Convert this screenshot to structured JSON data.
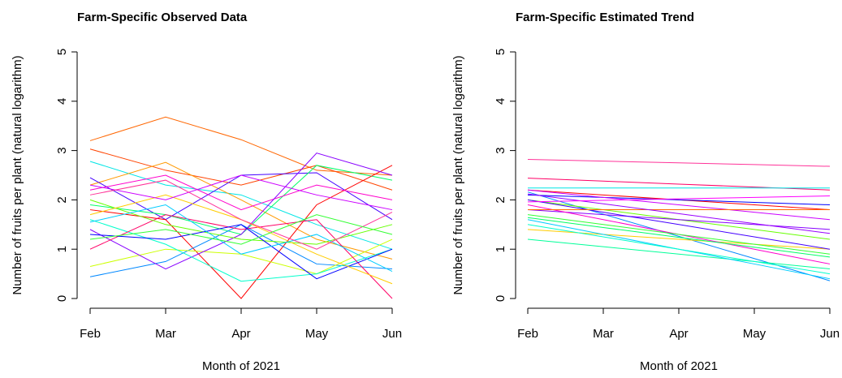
{
  "chart_data": [
    {
      "type": "line",
      "title": "Farm-Specific Observed Data",
      "xlabel": "Month of 2021",
      "ylabel": "Number of fruits per plant (natural logarithm)",
      "categories": [
        "Feb",
        "Mar",
        "Apr",
        "May",
        "Jun"
      ],
      "ylim": [
        0,
        5
      ],
      "yticks": [
        0,
        1,
        2,
        3,
        4,
        5
      ],
      "series": [
        {
          "color": "#ff6600",
          "values": [
            3.2,
            3.68,
            3.22,
            2.6,
            2.5
          ]
        },
        {
          "color": "#ff4400",
          "values": [
            3.03,
            2.6,
            2.3,
            2.7,
            2.2
          ]
        },
        {
          "color": "#00e5e5",
          "values": [
            2.78,
            2.3,
            2.1,
            1.5,
            1.0
          ]
        },
        {
          "color": "#ff9900",
          "values": [
            2.3,
            2.76,
            2.0,
            1.2,
            0.8
          ]
        },
        {
          "color": "#4400ff",
          "values": [
            2.45,
            1.6,
            2.5,
            2.55,
            1.6
          ]
        },
        {
          "color": "#00ff66",
          "values": [
            1.9,
            1.7,
            1.3,
            2.7,
            2.4
          ]
        },
        {
          "color": "#ff0000",
          "values": [
            1.8,
            1.6,
            0.0,
            1.9,
            2.7
          ]
        },
        {
          "color": "#0088ff",
          "values": [
            0.44,
            0.75,
            1.5,
            0.7,
            0.6
          ]
        },
        {
          "color": "#ccff00",
          "values": [
            0.65,
            1.0,
            0.9,
            0.5,
            1.2
          ]
        },
        {
          "color": "#ff00cc",
          "values": [
            2.2,
            2.5,
            1.8,
            2.3,
            2.0
          ]
        },
        {
          "color": "#8800ff",
          "values": [
            1.4,
            0.6,
            1.3,
            2.95,
            2.5
          ]
        },
        {
          "color": "#00ffcc",
          "values": [
            1.6,
            1.1,
            0.35,
            0.5,
            1.0
          ]
        },
        {
          "color": "#ff0066",
          "values": [
            1.0,
            1.7,
            1.4,
            1.6,
            0.0
          ]
        },
        {
          "color": "#66ff00",
          "values": [
            2.0,
            1.5,
            1.2,
            1.1,
            1.5
          ]
        },
        {
          "color": "#0000ff",
          "values": [
            1.3,
            1.2,
            1.5,
            0.4,
            1.0
          ]
        },
        {
          "color": "#ffcc00",
          "values": [
            1.7,
            2.1,
            1.6,
            0.9,
            0.3
          ]
        },
        {
          "color": "#cc00ff",
          "values": [
            2.3,
            2.0,
            2.5,
            2.1,
            1.8
          ]
        },
        {
          "color": "#00ccff",
          "values": [
            1.55,
            1.9,
            0.9,
            1.3,
            0.55
          ]
        },
        {
          "color": "#ff3399",
          "values": [
            2.1,
            2.4,
            1.6,
            1.0,
            1.75
          ]
        },
        {
          "color": "#33ff33",
          "values": [
            1.2,
            1.4,
            1.1,
            1.7,
            1.3
          ]
        }
      ]
    },
    {
      "type": "line",
      "title": "Farm-Specific Estimated Trend",
      "xlabel": "Month of 2021",
      "ylabel": "Number of fruits per plant (natural logarithm)",
      "categories": [
        "Feb",
        "Mar",
        "Apr",
        "May",
        "Jun"
      ],
      "ylim": [
        0,
        5
      ],
      "yticks": [
        0,
        1,
        2,
        3,
        4,
        5
      ],
      "series": [
        {
          "color": "#ff3399",
          "values": [
            2.82,
            2.785,
            2.75,
            2.715,
            2.68
          ]
        },
        {
          "color": "#ff0066",
          "values": [
            2.44,
            2.38,
            2.32,
            2.26,
            2.2
          ]
        },
        {
          "color": "#00e5e5",
          "values": [
            2.24,
            2.24,
            2.24,
            2.24,
            2.24
          ]
        },
        {
          "color": "#ff0000",
          "values": [
            2.2,
            2.1,
            2.0,
            1.9,
            1.8
          ]
        },
        {
          "color": "#0088ff",
          "values": [
            2.16,
            1.71,
            1.26,
            0.81,
            0.36
          ]
        },
        {
          "color": "#00ff99",
          "values": [
            1.2,
            1.05,
            0.9,
            0.75,
            0.6
          ]
        },
        {
          "color": "#ffcc00",
          "values": [
            1.4,
            1.3,
            1.2,
            1.1,
            1.0
          ]
        },
        {
          "color": "#00ccff",
          "values": [
            1.6,
            1.3,
            1.0,
            0.7,
            0.4
          ]
        },
        {
          "color": "#66ff00",
          "values": [
            2.0,
            1.8,
            1.6,
            1.4,
            1.2
          ]
        },
        {
          "color": "#8800ff",
          "values": [
            1.8,
            1.7,
            1.6,
            1.5,
            1.4
          ]
        },
        {
          "color": "#0000ff",
          "values": [
            2.1,
            2.05,
            2.0,
            1.95,
            1.9
          ]
        },
        {
          "color": "#ff00cc",
          "values": [
            1.9,
            1.6,
            1.3,
            1.0,
            0.7
          ]
        },
        {
          "color": "#33ff33",
          "values": [
            1.7,
            1.5,
            1.3,
            1.1,
            0.9
          ]
        },
        {
          "color": "#cc00ff",
          "values": [
            2.2,
            2.05,
            1.9,
            1.75,
            1.6
          ]
        },
        {
          "color": "#00ffcc",
          "values": [
            1.5,
            1.25,
            1.0,
            0.75,
            0.5
          ]
        },
        {
          "color": "#4400ff",
          "values": [
            2.0,
            1.75,
            1.5,
            1.25,
            1.0
          ]
        },
        {
          "color": "#ff6600",
          "values": [
            1.8,
            1.8,
            1.8,
            1.8,
            1.8
          ]
        },
        {
          "color": "#9900ff",
          "values": [
            2.12,
            1.92,
            1.72,
            1.52,
            1.32
          ]
        },
        {
          "color": "#00ff66",
          "values": [
            1.64,
            1.44,
            1.24,
            1.04,
            0.84
          ]
        },
        {
          "color": "#ff00ff",
          "values": [
            1.96,
            1.99,
            2.02,
            2.05,
            2.08
          ]
        }
      ]
    }
  ]
}
